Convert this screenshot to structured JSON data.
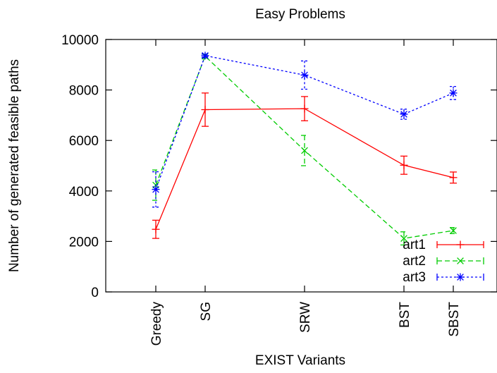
{
  "chart_data": {
    "type": "line",
    "title": "Easy Problems",
    "xlabel": "EXIST Variants",
    "ylabel": "Number of generated feasible paths",
    "categories": [
      "Greedy",
      "SG",
      "SRW",
      "BST",
      "SBST"
    ],
    "ylim": [
      0,
      10000
    ],
    "yticks": [
      "0",
      "2000",
      "4000",
      "6000",
      "8000",
      "10000"
    ],
    "grid": false,
    "legend_position": "bottom-right",
    "error_bars": true,
    "series": [
      {
        "name": "art1",
        "color": "#ff0000",
        "dash": "solid",
        "marker": "plus",
        "values": [
          2480,
          7220,
          7260,
          5020,
          4530
        ],
        "errors": [
          360,
          660,
          480,
          360,
          220
        ]
      },
      {
        "name": "art2",
        "color": "#00cc00",
        "dash": "dashed",
        "marker": "x",
        "values": [
          4230,
          9340,
          5600,
          2120,
          2430
        ],
        "errors": [
          600,
          80,
          600,
          260,
          120
        ]
      },
      {
        "name": "art3",
        "color": "#0000ff",
        "dash": "dotted",
        "marker": "star",
        "values": [
          4060,
          9360,
          8590,
          7040,
          7880
        ],
        "errors": [
          700,
          60,
          560,
          200,
          260
        ]
      }
    ]
  }
}
